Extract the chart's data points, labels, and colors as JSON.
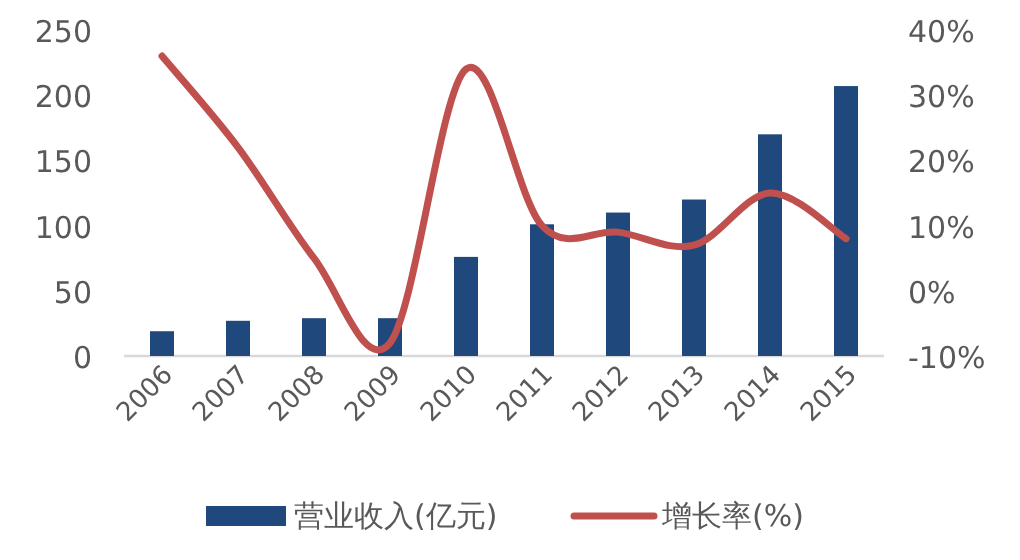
{
  "chart_data": {
    "type": "bar",
    "categories": [
      "2006",
      "2007",
      "2008",
      "2009",
      "2010",
      "2011",
      "2012",
      "2013",
      "2014",
      "2015"
    ],
    "series": [
      {
        "name": "营业收入(亿元)",
        "color": "#1f497d",
        "values": [
          19,
          27,
          29,
          29,
          76,
          101,
          110,
          120,
          170,
          207
        ]
      },
      {
        "name": "增长率(%)",
        "type": "line",
        "axis": "y2",
        "color": "#c0504d",
        "values": [
          36,
          22,
          5,
          -8,
          34,
          10,
          9,
          7,
          15,
          8
        ]
      }
    ],
    "ylim": [
      0,
      250
    ],
    "yticks": [
      0,
      50,
      100,
      150,
      200,
      250
    ],
    "y2lim": [
      -10,
      40
    ],
    "y2ticks": [
      {
        "value": -10,
        "label": "-10%"
      },
      {
        "value": 0,
        "label": "0%"
      },
      {
        "value": 10,
        "label": "10%"
      },
      {
        "value": 20,
        "label": "20%"
      },
      {
        "value": 30,
        "label": "30%"
      },
      {
        "value": 40,
        "label": "40%"
      }
    ],
    "legend": "bottom"
  }
}
